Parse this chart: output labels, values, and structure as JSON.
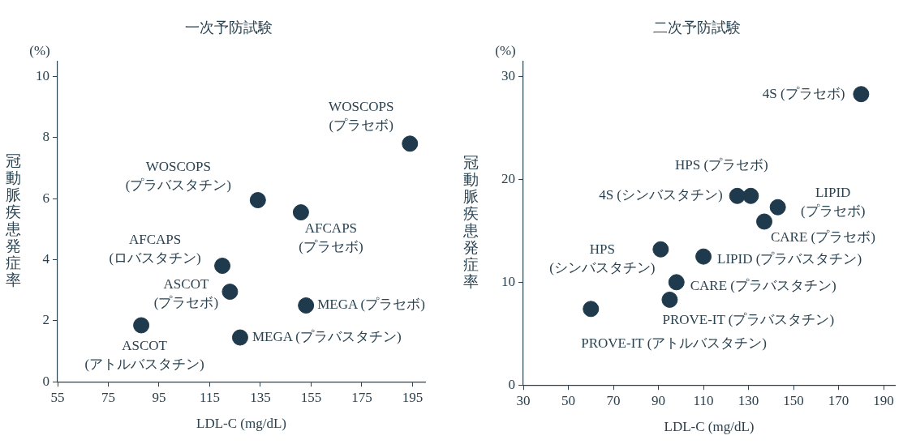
{
  "chart_data": [
    {
      "type": "scatter",
      "title": "一次予防試験",
      "xlabel": "LDL-C (mg/dL)",
      "ylabel": "冠動脈疾患発症率",
      "marker": "circle",
      "grid": false,
      "legend": false,
      "xlim": [
        55,
        200
      ],
      "xticks": [
        55,
        75,
        95,
        115,
        135,
        155,
        175,
        195
      ],
      "ylim": [
        0,
        10.5
      ],
      "yticks": [
        0,
        2,
        4,
        6,
        8,
        10
      ],
      "series": [
        {
          "color": "#1f3a4d",
          "x": [
            194,
            134,
            151,
            120,
            123,
            153,
            127,
            88
          ],
          "values": [
            7.8,
            5.95,
            5.55,
            3.8,
            2.95,
            2.5,
            1.45,
            1.85
          ]
        }
      ],
      "annotations": [
        "(%)",
        {
          "text": "WOSCOPS\n(プラセボ)",
          "x": 194,
          "y": 7.8
        },
        {
          "text": "WOSCOPS\n(プラバスタチン)",
          "x": 134,
          "y": 5.95
        },
        {
          "text": "AFCAPS\n(プラセボ)",
          "x": 151,
          "y": 5.55
        },
        {
          "text": "AFCAPS\n(ロバスタチン)",
          "x": 120,
          "y": 3.8
        },
        {
          "text": "ASCOT\n(プラセボ)",
          "x": 123,
          "y": 2.95
        },
        {
          "text": "MEGA (プラセボ)",
          "x": 153,
          "y": 2.5
        },
        {
          "text": "MEGA (プラバスタチン)",
          "x": 127,
          "y": 1.45
        },
        {
          "text": "ASCOT\n(アトルバスタチン)",
          "x": 88,
          "y": 1.85
        }
      ]
    },
    {
      "type": "scatter",
      "title": "二次予防試験",
      "xlabel": "LDL-C (mg/dL)",
      "ylabel": "冠動脈疾患発症率",
      "marker": "circle",
      "grid": false,
      "legend": false,
      "xlim": [
        30,
        195
      ],
      "xticks": [
        30,
        50,
        70,
        90,
        110,
        130,
        150,
        170,
        190
      ],
      "ylim": [
        0,
        31.5
      ],
      "yticks": [
        0,
        10,
        20,
        30
      ],
      "series": [
        {
          "color": "#1f3a4d",
          "x": [
            180,
            131,
            125,
            143,
            137,
            91,
            110,
            98,
            95,
            60
          ],
          "values": [
            28.3,
            18.4,
            18.4,
            17.3,
            15.9,
            13.2,
            12.5,
            10,
            8.3,
            7.4
          ]
        }
      ],
      "annotations": [
        "(%)",
        {
          "text": "4S (プラセボ)",
          "x": 180,
          "y": 28.3
        },
        {
          "text": "HPS (プラセボ)",
          "x": 131,
          "y": 18.4
        },
        {
          "text": "4S (シンバスタチン)",
          "x": 125,
          "y": 18.4
        },
        {
          "text": "LIPID\n(プラセボ)",
          "x": 143,
          "y": 17.3
        },
        {
          "text": "CARE (プラセボ)",
          "x": 137,
          "y": 15.9
        },
        {
          "text": "HPS\n(シンバスタチン)",
          "x": 91,
          "y": 13.2
        },
        {
          "text": "LIPID (プラバスタチン)",
          "x": 110,
          "y": 12.5
        },
        {
          "text": "CARE (プラバスタチン)",
          "x": 98,
          "y": 10
        },
        {
          "text": "PROVE-IT (プラバスタチン)",
          "x": 95,
          "y": 8.3
        },
        {
          "text": "PROVE-IT (アトルバスタチン)",
          "x": 60,
          "y": 7.4
        }
      ]
    }
  ]
}
